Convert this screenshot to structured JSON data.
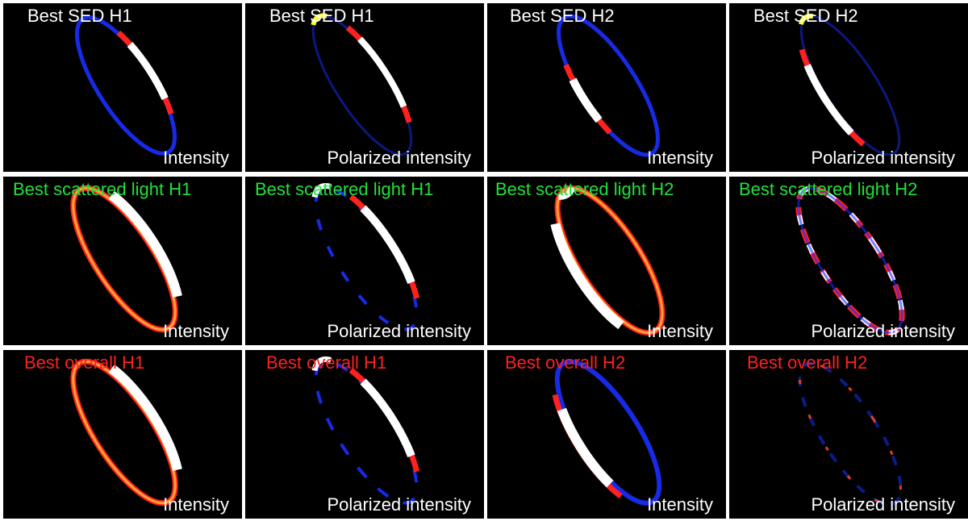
{
  "colors": {
    "sed": "#ffffff",
    "scattered": "#22e03a",
    "overall": "#ff2020"
  },
  "rows": [
    {
      "group": "sed",
      "panels": [
        {
          "title": "Best SED H1",
          "subtitle": "Intensity"
        },
        {
          "title": "Best SED H1",
          "subtitle": "Polarized intensity"
        },
        {
          "title": "Best SED H2",
          "subtitle": "Intensity"
        },
        {
          "title": "Best SED H2",
          "subtitle": "Polarized intensity"
        }
      ]
    },
    {
      "group": "scattered",
      "panels": [
        {
          "title": "Best scattered light H1",
          "subtitle": "Intensity"
        },
        {
          "title": "Best scattered light H1",
          "subtitle": "Polarized intensity"
        },
        {
          "title": "Best scattered light H2",
          "subtitle": "Intensity"
        },
        {
          "title": "Best scattered light H2",
          "subtitle": "Polarized intensity"
        }
      ]
    },
    {
      "group": "overall",
      "panels": [
        {
          "title": "Best overall H1",
          "subtitle": "Intensity"
        },
        {
          "title": "Best overall H1",
          "subtitle": "Polarized intensity"
        },
        {
          "title": "Best overall H2",
          "subtitle": "Intensity"
        },
        {
          "title": "Best overall H2",
          "subtitle": "Polarized intensity"
        }
      ]
    }
  ]
}
